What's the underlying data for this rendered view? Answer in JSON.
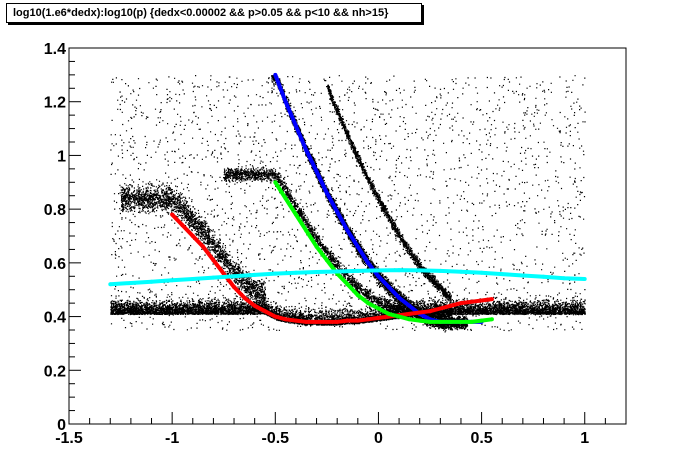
{
  "chart_data": {
    "type": "scatter",
    "title": "log10(1.e6*dedx):log10(p) {dedx<0.00002 && p>0.05 && p<10 && nh>15}",
    "xlim": [
      -1.5,
      1.2
    ],
    "ylim": [
      0,
      1.4
    ],
    "x_ticks": [
      "-1.5",
      "-1",
      "-0.5",
      "0",
      "0.5",
      "1"
    ],
    "y_ticks": [
      "0",
      "0.2",
      "0.4",
      "0.6",
      "0.8",
      "1",
      "1.2",
      "1.4"
    ],
    "grid": false,
    "legend": "none",
    "scatter_color": "#000000",
    "series": [
      {
        "color": "#0000ff",
        "x": [
          -0.5,
          -0.45,
          -0.4,
          -0.35,
          -0.3,
          -0.25,
          -0.2,
          -0.15,
          -0.1,
          -0.05,
          0.0,
          0.05,
          0.1,
          0.15,
          0.2,
          0.25,
          0.3,
          0.35,
          0.4,
          0.45,
          0.5
        ],
        "y": [
          1.3,
          1.2,
          1.11,
          1.02,
          0.94,
          0.86,
          0.79,
          0.72,
          0.66,
          0.6,
          0.55,
          0.51,
          0.47,
          0.44,
          0.41,
          0.39,
          0.38,
          0.38,
          0.38,
          0.38,
          0.38
        ]
      },
      {
        "color": "#ff0000",
        "x": [
          -1.0,
          -0.95,
          -0.9,
          -0.85,
          -0.8,
          -0.75,
          -0.7,
          -0.65,
          -0.6,
          -0.55,
          -0.5,
          -0.45,
          -0.4,
          -0.35,
          -0.3,
          -0.25,
          -0.2,
          -0.15,
          -0.1,
          -0.05,
          0.0,
          0.05,
          0.1,
          0.15,
          0.2,
          0.25,
          0.3,
          0.35,
          0.4,
          0.45,
          0.5,
          0.55
        ],
        "y": [
          0.78,
          0.74,
          0.7,
          0.66,
          0.61,
          0.56,
          0.51,
          0.47,
          0.44,
          0.42,
          0.4,
          0.39,
          0.385,
          0.38,
          0.38,
          0.38,
          0.38,
          0.385,
          0.385,
          0.39,
          0.395,
          0.4,
          0.405,
          0.41,
          0.415,
          0.42,
          0.43,
          0.44,
          0.45,
          0.455,
          0.46,
          0.465
        ]
      },
      {
        "color": "#00ff00",
        "x": [
          -0.5,
          -0.45,
          -0.4,
          -0.35,
          -0.3,
          -0.25,
          -0.2,
          -0.15,
          -0.1,
          -0.05,
          0.0,
          0.05,
          0.1,
          0.15,
          0.2,
          0.25,
          0.3,
          0.35,
          0.4,
          0.45,
          0.5,
          0.55
        ],
        "y": [
          0.9,
          0.84,
          0.78,
          0.72,
          0.66,
          0.61,
          0.56,
          0.52,
          0.48,
          0.45,
          0.43,
          0.41,
          0.4,
          0.39,
          0.385,
          0.38,
          0.38,
          0.38,
          0.38,
          0.38,
          0.385,
          0.39
        ]
      },
      {
        "color": "#00ffff",
        "x": [
          -1.3,
          -1.2,
          -1.1,
          -1.0,
          -0.9,
          -0.8,
          -0.7,
          -0.6,
          -0.5,
          -0.4,
          -0.3,
          -0.2,
          -0.1,
          0.0,
          0.1,
          0.2,
          0.3,
          0.4,
          0.5,
          0.6,
          0.7,
          0.8,
          0.9,
          1.0
        ],
        "y": [
          0.52,
          0.525,
          0.53,
          0.535,
          0.54,
          0.545,
          0.55,
          0.555,
          0.56,
          0.563,
          0.566,
          0.568,
          0.57,
          0.572,
          0.573,
          0.572,
          0.57,
          0.567,
          0.563,
          0.558,
          0.553,
          0.548,
          0.543,
          0.54
        ]
      }
    ]
  }
}
